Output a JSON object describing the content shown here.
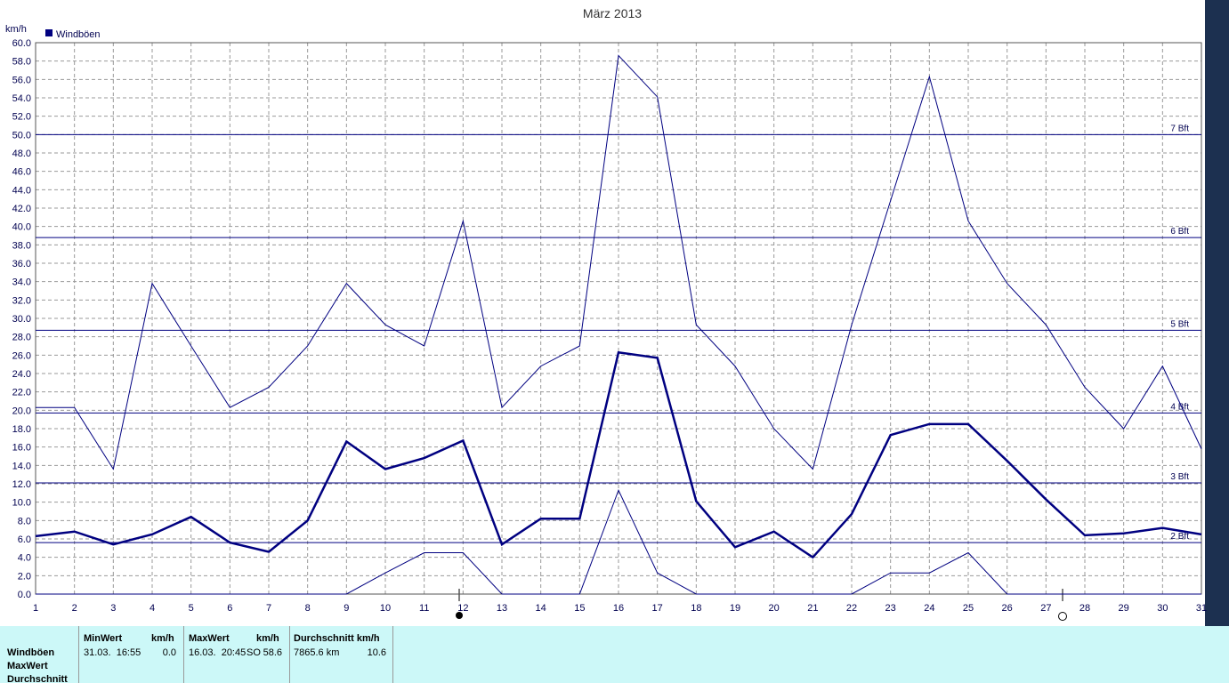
{
  "chart_data": {
    "type": "line",
    "title": "März 2013",
    "y_unit": "km/h",
    "legend": {
      "label": "Windböen",
      "color": "#000080"
    },
    "x": [
      1,
      2,
      3,
      4,
      5,
      6,
      7,
      8,
      9,
      10,
      11,
      12,
      13,
      14,
      15,
      16,
      17,
      18,
      19,
      20,
      21,
      22,
      23,
      24,
      25,
      26,
      27,
      28,
      29,
      30,
      31
    ],
    "xlim": [
      1,
      31
    ],
    "xticks": [
      1,
      2,
      3,
      4,
      5,
      6,
      7,
      8,
      9,
      10,
      11,
      12,
      13,
      14,
      15,
      16,
      17,
      18,
      19,
      20,
      21,
      22,
      23,
      24,
      25,
      26,
      27,
      28,
      29,
      30,
      31
    ],
    "ylim": [
      0,
      60
    ],
    "yticks": [
      {
        "value": 0,
        "label": "0.0"
      },
      {
        "value": 2,
        "label": "2.0"
      },
      {
        "value": 4,
        "label": "4.0"
      },
      {
        "value": 6,
        "label": "6.0"
      },
      {
        "value": 8,
        "label": "8.0"
      },
      {
        "value": 10,
        "label": "10.0"
      },
      {
        "value": 12,
        "label": "12.0"
      },
      {
        "value": 14,
        "label": "14.0"
      },
      {
        "value": 16,
        "label": "16.0"
      },
      {
        "value": 18,
        "label": "18.0"
      },
      {
        "value": 20,
        "label": "20.0"
      },
      {
        "value": 22,
        "label": "22.0"
      },
      {
        "value": 24,
        "label": "24.0"
      },
      {
        "value": 26,
        "label": "26.0"
      },
      {
        "value": 28,
        "label": "28.0"
      },
      {
        "value": 30,
        "label": "30.0"
      },
      {
        "value": 32,
        "label": "32.0"
      },
      {
        "value": 34,
        "label": "34.0"
      },
      {
        "value": 36,
        "label": "36.0"
      },
      {
        "value": 38,
        "label": "38.0"
      },
      {
        "value": 40,
        "label": "40.0"
      },
      {
        "value": 42,
        "label": "42.0"
      },
      {
        "value": 44,
        "label": "44.0"
      },
      {
        "value": 46,
        "label": "46.0"
      },
      {
        "value": 48,
        "label": "48.0"
      },
      {
        "value": 50,
        "label": "50.0"
      },
      {
        "value": 52,
        "label": "52.0"
      },
      {
        "value": 54,
        "label": "54.0"
      },
      {
        "value": 56,
        "label": "56.0"
      },
      {
        "value": 58,
        "label": "58.0"
      },
      {
        "value": 60,
        "label": "60.0"
      }
    ],
    "grid": true,
    "series": [
      {
        "color": "#000080",
        "line_width": 1,
        "values": [
          20.3,
          20.3,
          13.6,
          33.8,
          27.0,
          20.3,
          22.5,
          27.0,
          33.8,
          29.3,
          27.0,
          40.6,
          20.3,
          24.8,
          27.0,
          58.6,
          54.1,
          29.3,
          24.8,
          18.0,
          13.6,
          29.3,
          42.8,
          56.3,
          40.6,
          33.8,
          29.3,
          22.5,
          18.0,
          24.8,
          15.8
        ]
      },
      {
        "color": "#000080",
        "line_width": 2.5,
        "values": [
          6.3,
          6.8,
          5.4,
          6.5,
          8.4,
          5.6,
          4.6,
          8.0,
          16.6,
          13.6,
          14.8,
          16.7,
          5.4,
          8.2,
          8.2,
          26.3,
          25.7,
          10.1,
          5.1,
          6.8,
          4.0,
          8.7,
          17.3,
          18.5,
          18.5,
          14.5,
          10.3,
          6.4,
          6.6,
          7.2,
          6.5
        ]
      },
      {
        "color": "#000080",
        "line_width": 1,
        "values": [
          0,
          0,
          0,
          0,
          0,
          0,
          0,
          0,
          0,
          2.3,
          4.5,
          4.5,
          0,
          0,
          0,
          11.3,
          2.3,
          0,
          0,
          0,
          0,
          0,
          2.3,
          2.3,
          4.5,
          0,
          0,
          0,
          0,
          0,
          0
        ]
      }
    ],
    "reference_lines": [
      {
        "value": 5.6,
        "label": "2 Bft"
      },
      {
        "value": 12.1,
        "label": "3 Bft"
      },
      {
        "value": 19.7,
        "label": "4 Bft"
      },
      {
        "value": 28.7,
        "label": "5 Bft"
      },
      {
        "value": 38.8,
        "label": "6 Bft"
      },
      {
        "value": 50.0,
        "label": "7 Bft"
      }
    ]
  },
  "stats": {
    "row_labels": [
      "Windböen",
      "MaxWert",
      "Durchschnitt"
    ],
    "headers": [
      "MinWert",
      "km/h",
      "MaxWert",
      "km/h",
      "Durchschnitt km/h"
    ],
    "row": [
      "31.03.  16:55",
      "0.0",
      "16.03.  20:45",
      "SO",
      "58.6",
      "7865.6 km",
      "10.6"
    ]
  }
}
